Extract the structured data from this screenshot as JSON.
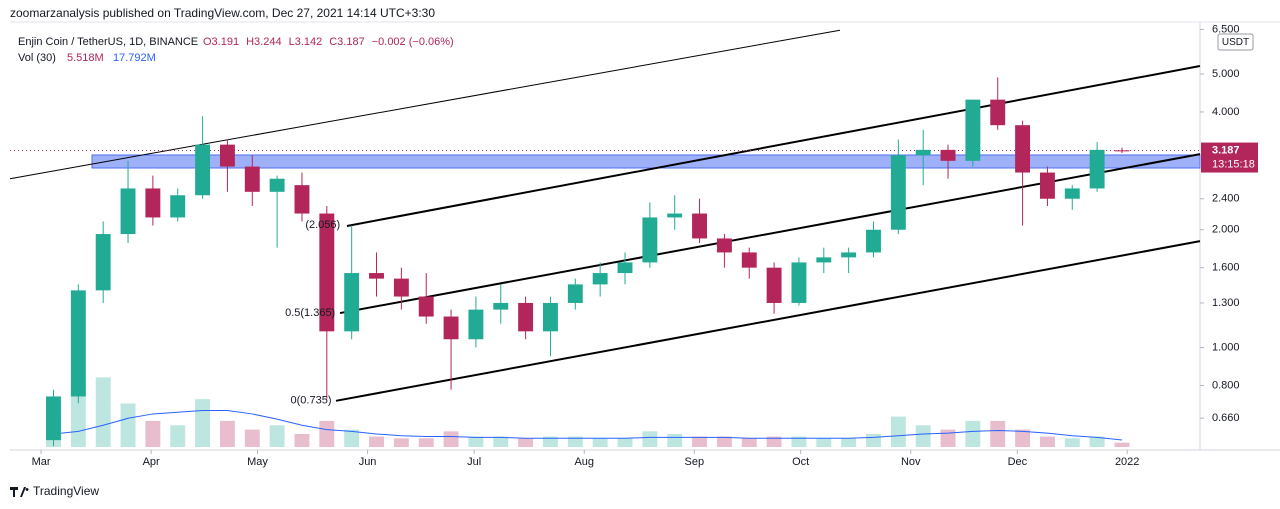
{
  "header": "zoomarzanalysis published on TradingView.com, Dec 27, 2021 14:14 UTC+3:30",
  "footer": "TradingView",
  "chart_data": {
    "type": "candlestick",
    "title": "Enjin Coin / TetherUS, 1D, BINANCE",
    "ohlc_legend": [
      "O3.191",
      "H3.244",
      "L3.142",
      "C3.187",
      "−0.002 (−0.06%)"
    ],
    "volume_legend": [
      "Vol (30)",
      "5.518M",
      "17.792M"
    ],
    "currency": "USDT",
    "last_price": 3.187,
    "countdown": "13:15:18",
    "up_color": "#22ab94",
    "down_color": "#b2265b",
    "log_scale": true,
    "grid": false,
    "xlim": [
      -1.25,
      46.64
    ],
    "xticks": [
      {
        "value": 0,
        "label": "Mar"
      },
      {
        "value": 4.43,
        "label": "Apr"
      },
      {
        "value": 8.71,
        "label": "May"
      },
      {
        "value": 13.14,
        "label": "Jun"
      },
      {
        "value": 17.43,
        "label": "Jul"
      },
      {
        "value": 21.86,
        "label": "Aug"
      },
      {
        "value": 26.29,
        "label": "Sep"
      },
      {
        "value": 30.57,
        "label": "Oct"
      },
      {
        "value": 35,
        "label": "Nov"
      },
      {
        "value": 39.29,
        "label": "Dec"
      },
      {
        "value": 43.71,
        "label": "2022"
      }
    ],
    "ylim": [
      0.557,
      6.79
    ],
    "yticks": [
      {
        "value": 0.66,
        "label": "0.660"
      },
      {
        "value": 0.8,
        "label": "0.800"
      },
      {
        "value": 1,
        "label": "1.000"
      },
      {
        "value": 1.3,
        "label": "1.300"
      },
      {
        "value": 1.6,
        "label": "1.600"
      },
      {
        "value": 2,
        "label": "2.000"
      },
      {
        "value": 2.4,
        "label": "2.400"
      },
      {
        "value": 4,
        "label": "4.000"
      },
      {
        "value": 5,
        "label": "5.000"
      },
      {
        "value": 6.5,
        "label": "6.500"
      }
    ],
    "open": [
      0.58,
      0.75,
      1.4,
      1.95,
      2.55,
      2.15,
      2.45,
      3.3,
      2.9,
      2.5,
      2.6,
      2.2,
      1.1,
      1.55,
      1.5,
      1.35,
      1.2,
      1.05,
      1.25,
      1.3,
      1.1,
      1.3,
      1.45,
      1.55,
      1.65,
      2.15,
      2.2,
      1.9,
      1.75,
      1.6,
      1.3,
      1.65,
      1.7,
      1.75,
      2.0,
      3.1,
      3.2,
      3.0,
      4.3,
      3.7,
      2.8,
      2.4,
      2.55,
      3.191
    ],
    "high": [
      0.78,
      1.45,
      2.1,
      3.0,
      2.75,
      2.55,
      3.9,
      3.4,
      3.1,
      2.75,
      2.8,
      2.3,
      2.05,
      1.75,
      1.6,
      1.55,
      1.25,
      1.35,
      1.45,
      1.35,
      1.35,
      1.5,
      1.65,
      1.75,
      2.35,
      2.45,
      2.4,
      1.95,
      1.8,
      1.65,
      1.7,
      1.8,
      1.8,
      2.1,
      3.4,
      3.6,
      3.3,
      4.3,
      4.9,
      3.8,
      2.9,
      2.6,
      3.35,
      3.244
    ],
    "low": [
      0.56,
      0.72,
      1.3,
      1.85,
      2.05,
      2.1,
      2.4,
      2.5,
      2.3,
      1.8,
      2.1,
      0.74,
      1.05,
      1.35,
      1.25,
      1.15,
      0.78,
      1.0,
      1.15,
      1.05,
      0.95,
      1.25,
      1.35,
      1.45,
      1.6,
      2.0,
      1.85,
      1.6,
      1.5,
      1.22,
      1.28,
      1.55,
      1.55,
      1.7,
      1.95,
      2.6,
      2.7,
      2.9,
      3.6,
      2.05,
      2.3,
      2.25,
      2.5,
      3.142
    ],
    "close": [
      0.75,
      1.4,
      1.95,
      2.55,
      2.15,
      2.45,
      3.3,
      2.9,
      2.5,
      2.7,
      2.2,
      1.1,
      1.55,
      1.5,
      1.35,
      1.2,
      1.05,
      1.25,
      1.3,
      1.1,
      1.3,
      1.45,
      1.55,
      1.65,
      2.15,
      2.2,
      1.9,
      1.75,
      1.6,
      1.3,
      1.65,
      1.7,
      1.75,
      2.0,
      3.1,
      3.2,
      3.0,
      4.3,
      3.7,
      2.8,
      2.4,
      2.55,
      3.2,
      3.187
    ],
    "volume": [
      30,
      70,
      80,
      50,
      30,
      25,
      55,
      30,
      20,
      25,
      15,
      30,
      20,
      12,
      10,
      10,
      18,
      12,
      12,
      10,
      12,
      12,
      10,
      10,
      18,
      15,
      12,
      12,
      10,
      12,
      12,
      10,
      10,
      15,
      35,
      25,
      20,
      30,
      30,
      20,
      12,
      10,
      12,
      5
    ],
    "volume_ma": [
      15,
      18,
      25,
      33,
      38,
      40,
      42,
      42,
      38,
      32,
      25,
      20,
      18,
      15,
      13,
      12,
      12,
      11,
      11,
      10,
      10,
      10,
      10,
      10,
      11,
      11,
      11,
      11,
      10,
      10,
      10,
      10,
      10,
      11,
      13,
      15,
      16,
      18,
      19,
      18,
      16,
      13,
      11,
      8
    ],
    "volume_ylim": [
      0,
      100
    ],
    "volume_ma_color": "#2962ff",
    "zone": {
      "x": [
        2.05,
        46.64
      ],
      "y": [
        2.876,
        3.105
      ],
      "color": "#4f6ff0"
    },
    "trendlines": [
      {
        "points": [
          [
            -1.25,
            2.7
          ],
          [
            32.15,
            6.47
          ]
        ],
        "width": 1
      },
      {
        "points": [
          [
            12.31,
            2.045
          ],
          [
            46.64,
            5.24
          ]
        ],
        "width": 2
      },
      {
        "points": [
          [
            12.03,
            1.225
          ],
          [
            46.64,
            3.12
          ]
        ],
        "width": 2
      },
      {
        "points": [
          [
            11.87,
            0.731
          ],
          [
            46.64,
            1.87
          ]
        ],
        "width": 2
      }
    ],
    "annotations": [
      {
        "text": "(2.056)",
        "x": 12.2,
        "y": 2.056
      },
      {
        "text": "0.5(1.365)",
        "x": 12.0,
        "y": 1.225
      },
      {
        "text": "0(0.735)",
        "x": 11.85,
        "y": 0.731
      }
    ]
  }
}
